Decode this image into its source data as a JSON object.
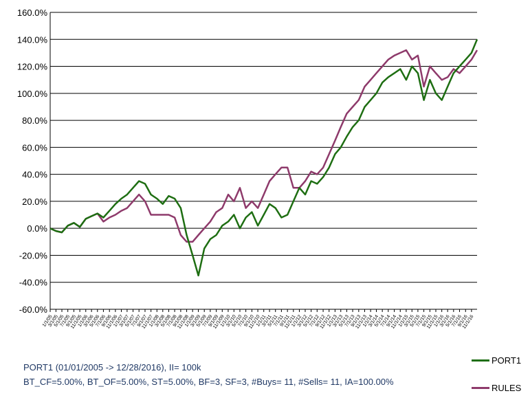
{
  "caption": {
    "line1": "PORT1 (01/01/2005 -> 12/28/2016), II= 100k",
    "line2": "BT_CF=5.00%, BT_OF=5.00%, ST=5.00%, BF=3, SF=3, #Buys= 11, #Sells= 11, IA=100.00%"
  },
  "colors": {
    "port1": "#1e6e12",
    "rules": "#8e3a6b",
    "grid": "#000000",
    "caption": "#1f3864"
  },
  "chart_data": {
    "type": "line",
    "title": "",
    "xlabel": "",
    "ylabel": "",
    "ylim": [
      -60,
      160
    ],
    "y_tick_step": 20,
    "y_tick_format": "percent_1dp",
    "grid": "horizontal",
    "legend": "bottom-right",
    "x": [
      "2005-01-01",
      "2005-03-01",
      "2005-05-01",
      "2005-07-01",
      "2005-09-01",
      "2005-11-01",
      "2006-01-01",
      "2006-03-01",
      "2006-05-01",
      "2006-07-01",
      "2006-09-01",
      "2006-11-01",
      "2007-01-01",
      "2007-03-01",
      "2007-05-01",
      "2007-07-01",
      "2007-09-01",
      "2007-11-01",
      "2008-01-01",
      "2008-03-01",
      "2008-05-01",
      "2008-07-01",
      "2008-09-01",
      "2008-11-01",
      "2009-01-01",
      "2009-03-01",
      "2009-05-01",
      "2009-07-01",
      "2009-09-01",
      "2009-11-01",
      "2010-01-01",
      "2010-03-01",
      "2010-05-01",
      "2010-07-01",
      "2010-09-01",
      "2010-11-01",
      "2011-01-01",
      "2011-03-01",
      "2011-05-01",
      "2011-07-01",
      "2011-09-01",
      "2011-11-01",
      "2012-01-01",
      "2012-03-01",
      "2012-05-01",
      "2012-07-01",
      "2012-09-01",
      "2012-11-01",
      "2013-01-01",
      "2013-03-01",
      "2013-05-01",
      "2013-07-01",
      "2013-09-01",
      "2013-11-01",
      "2014-01-01",
      "2014-03-01",
      "2014-05-01",
      "2014-07-01",
      "2014-09-01",
      "2014-11-01",
      "2015-01-01",
      "2015-03-01",
      "2015-05-01",
      "2015-07-01",
      "2015-09-01",
      "2015-11-01",
      "2016-01-01",
      "2016-03-01",
      "2016-05-01",
      "2016-07-01",
      "2016-09-01",
      "2016-11-01",
      "2016-12-28"
    ],
    "x_tick_labels": [
      "1/1/05",
      "3/1/05",
      "5/1/05",
      "7/1/05",
      "9/1/05",
      "11/1/05",
      "1/1/06",
      "3/1/06",
      "5/1/06",
      "7/1/06",
      "9/1/06",
      "11/1/06",
      "1/1/07",
      "3/1/07",
      "5/1/07",
      "7/1/07",
      "9/1/07",
      "11/1/07",
      "1/1/08",
      "3/1/08",
      "5/1/08",
      "7/1/08",
      "9/1/08",
      "11/1/08",
      "1/1/09",
      "3/1/09",
      "5/1/09",
      "7/1/09",
      "9/1/09",
      "11/1/09",
      "1/1/10",
      "3/1/10",
      "5/1/10",
      "7/1/10",
      "9/1/10",
      "11/1/10",
      "1/1/11",
      "3/1/11",
      "5/1/11",
      "7/1/11",
      "9/1/11",
      "11/1/11",
      "1/1/12",
      "3/1/12",
      "5/1/12",
      "7/1/12",
      "9/1/12",
      "11/1/12",
      "1/1/13",
      "3/1/13",
      "5/1/13",
      "7/1/13",
      "9/1/13",
      "11/1/13",
      "1/1/14",
      "3/1/14",
      "5/1/14",
      "7/1/14",
      "9/1/14",
      "11/1/14",
      "1/1/15",
      "3/1/15",
      "5/1/15",
      "7/1/15",
      "9/1/15",
      "11/1/15",
      "1/1/16",
      "3/1/16",
      "5/1/16",
      "7/1/16",
      "9/1/16",
      "11/1/16"
    ],
    "series": [
      {
        "name": "PORT1",
        "color": "#1e6e12",
        "values": [
          0,
          -2,
          -3,
          2,
          4,
          1,
          7,
          9,
          11,
          8,
          13,
          18,
          22,
          25,
          30,
          35,
          33,
          25,
          22,
          18,
          24,
          22,
          15,
          -5,
          -20,
          -35,
          -15,
          -8,
          -5,
          2,
          5,
          10,
          0,
          8,
          12,
          2,
          10,
          18,
          15,
          8,
          10,
          20,
          30,
          25,
          35,
          33,
          38,
          45,
          55,
          60,
          68,
          75,
          80,
          90,
          95,
          100,
          108,
          112,
          115,
          118,
          110,
          120,
          115,
          95,
          110,
          100,
          95,
          105,
          115,
          120,
          125,
          130,
          140
        ]
      },
      {
        "name": "RULES",
        "color": "#8e3a6b",
        "values": [
          0,
          -2,
          -3,
          2,
          4,
          1,
          7,
          9,
          11,
          5,
          8,
          10,
          13,
          15,
          20,
          25,
          20,
          10,
          10,
          10,
          10,
          8,
          -5,
          -10,
          -10,
          -5,
          0,
          5,
          12,
          15,
          25,
          20,
          30,
          15,
          20,
          15,
          25,
          35,
          40,
          45,
          45,
          30,
          30,
          35,
          42,
          40,
          45,
          55,
          65,
          75,
          85,
          90,
          95,
          105,
          110,
          115,
          120,
          125,
          128,
          130,
          132,
          125,
          128,
          105,
          120,
          115,
          110,
          112,
          118,
          115,
          120,
          125,
          132
        ]
      }
    ]
  }
}
